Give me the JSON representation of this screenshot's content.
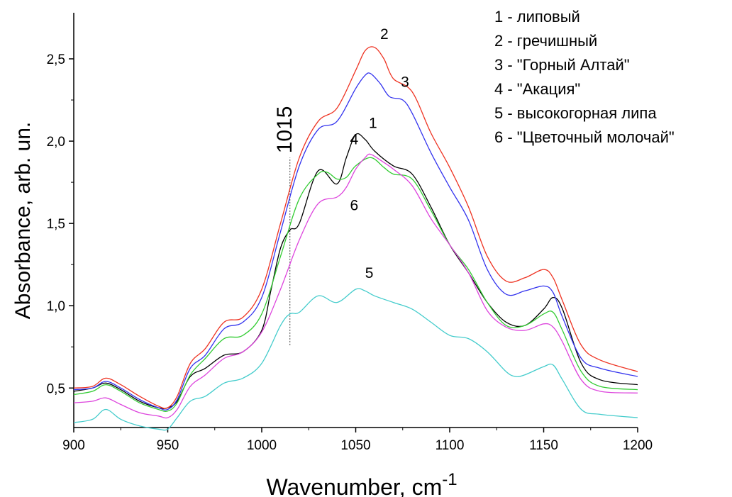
{
  "chart_data": {
    "type": "line",
    "xlabel": "Wavenumber, cm",
    "xlabel_superscript": "-1",
    "ylabel": "Absorbance, arb. un.",
    "xlim": [
      900,
      1200
    ],
    "ylim": [
      0.26,
      2.78
    ],
    "x_ticks": [
      900,
      950,
      1000,
      1050,
      1100,
      1150,
      1200
    ],
    "y_ticks": [
      0.5,
      1.0,
      1.5,
      2.0,
      2.5
    ],
    "y_tick_labels": [
      "0,5",
      "1,0",
      "1,5",
      "2,0",
      "2,5"
    ],
    "grid": false,
    "legend_position": "top-right",
    "annotation": {
      "text": "1015",
      "x": 1015,
      "y_from": 0.76,
      "y_to": 1.9
    },
    "series": [
      {
        "name": "1 - липовый",
        "label": "1",
        "color": "#000000",
        "x": [
          900,
          910,
          917,
          925,
          935,
          945,
          950,
          955,
          962,
          970,
          980,
          990,
          1000,
          1005,
          1010,
          1015,
          1020,
          1030,
          1040,
          1045,
          1050,
          1055,
          1060,
          1070,
          1080,
          1090,
          1100,
          1110,
          1120,
          1130,
          1140,
          1150,
          1155,
          1160,
          1170,
          1180,
          1200
        ],
        "y": [
          0.48,
          0.5,
          0.53,
          0.49,
          0.42,
          0.38,
          0.38,
          0.42,
          0.57,
          0.62,
          0.7,
          0.72,
          0.85,
          1.1,
          1.35,
          1.46,
          1.5,
          1.82,
          1.74,
          1.9,
          2.04,
          2.01,
          1.94,
          1.85,
          1.8,
          1.6,
          1.37,
          1.2,
          1.02,
          0.9,
          0.88,
          0.98,
          1.05,
          0.98,
          0.65,
          0.55,
          0.52
        ],
        "label_at": [
          1057,
          2.08
        ]
      },
      {
        "name": "2 - гречишный",
        "label": "2",
        "color": "#ee3322",
        "x": [
          900,
          910,
          917,
          925,
          935,
          945,
          950,
          955,
          962,
          970,
          980,
          990,
          1000,
          1010,
          1020,
          1030,
          1040,
          1050,
          1055,
          1060,
          1065,
          1070,
          1080,
          1090,
          1100,
          1110,
          1120,
          1130,
          1140,
          1150,
          1155,
          1160,
          1170,
          1180,
          1200
        ],
        "y": [
          0.5,
          0.51,
          0.56,
          0.52,
          0.45,
          0.39,
          0.38,
          0.45,
          0.65,
          0.74,
          0.9,
          0.93,
          1.1,
          1.5,
          1.9,
          2.12,
          2.2,
          2.43,
          2.55,
          2.57,
          2.5,
          2.38,
          2.3,
          2.05,
          1.84,
          1.6,
          1.3,
          1.15,
          1.17,
          1.22,
          1.17,
          1.03,
          0.76,
          0.67,
          0.6
        ],
        "label_at": [
          1063,
          2.62
        ]
      },
      {
        "name": "3 - \"Горный Алтай\"",
        "label": "3",
        "color": "#3333ee",
        "x": [
          900,
          910,
          917,
          925,
          935,
          945,
          950,
          955,
          962,
          970,
          980,
          990,
          1000,
          1010,
          1020,
          1030,
          1040,
          1050,
          1055,
          1058,
          1063,
          1068,
          1075,
          1080,
          1090,
          1100,
          1110,
          1120,
          1130,
          1140,
          1150,
          1155,
          1160,
          1170,
          1180,
          1200
        ],
        "y": [
          0.49,
          0.5,
          0.54,
          0.5,
          0.43,
          0.38,
          0.37,
          0.43,
          0.62,
          0.7,
          0.86,
          0.9,
          1.05,
          1.45,
          1.85,
          2.07,
          2.12,
          2.32,
          2.4,
          2.41,
          2.35,
          2.27,
          2.25,
          2.17,
          1.93,
          1.72,
          1.52,
          1.22,
          1.07,
          1.09,
          1.12,
          1.08,
          0.93,
          0.68,
          0.62,
          0.57
        ],
        "label_at": [
          1074,
          2.33
        ]
      },
      {
        "name": "4 - \"Акация\"",
        "label": "4",
        "color": "#33cc33",
        "x": [
          900,
          910,
          917,
          925,
          935,
          945,
          950,
          955,
          962,
          970,
          980,
          990,
          1000,
          1010,
          1020,
          1030,
          1035,
          1040,
          1045,
          1050,
          1058,
          1065,
          1070,
          1080,
          1090,
          1100,
          1110,
          1120,
          1130,
          1140,
          1150,
          1155,
          1160,
          1170,
          1180,
          1200
        ],
        "y": [
          0.46,
          0.48,
          0.52,
          0.48,
          0.41,
          0.37,
          0.36,
          0.41,
          0.58,
          0.68,
          0.8,
          0.82,
          0.95,
          1.3,
          1.65,
          1.8,
          1.81,
          1.77,
          1.78,
          1.85,
          1.9,
          1.84,
          1.8,
          1.77,
          1.58,
          1.37,
          1.22,
          1.02,
          0.88,
          0.88,
          0.95,
          0.96,
          0.85,
          0.6,
          0.51,
          0.49
        ],
        "label_at": [
          1047,
          1.98
        ]
      },
      {
        "name": "5 - высокогорная липа",
        "label": "5",
        "color": "#44cccc",
        "x": [
          900,
          910,
          917,
          925,
          935,
          945,
          950,
          955,
          962,
          970,
          980,
          990,
          1000,
          1010,
          1015,
          1020,
          1030,
          1040,
          1050,
          1055,
          1060,
          1070,
          1080,
          1090,
          1100,
          1110,
          1120,
          1130,
          1135,
          1140,
          1150,
          1155,
          1160,
          1170,
          1180,
          1200
        ],
        "y": [
          0.29,
          0.31,
          0.37,
          0.31,
          0.27,
          0.25,
          0.25,
          0.32,
          0.42,
          0.45,
          0.53,
          0.56,
          0.65,
          0.88,
          0.95,
          0.96,
          1.06,
          1.02,
          1.1,
          1.09,
          1.06,
          1.02,
          0.98,
          0.9,
          0.82,
          0.8,
          0.72,
          0.6,
          0.57,
          0.58,
          0.63,
          0.64,
          0.55,
          0.37,
          0.34,
          0.32
        ],
        "label_at": [
          1055,
          1.17
        ]
      },
      {
        "name": "6 - \"Цветочный молочай\"",
        "label": "6",
        "color": "#dd44dd",
        "x": [
          900,
          910,
          917,
          925,
          935,
          945,
          950,
          955,
          962,
          970,
          980,
          990,
          1000,
          1010,
          1020,
          1030,
          1040,
          1045,
          1050,
          1055,
          1058,
          1065,
          1070,
          1080,
          1090,
          1100,
          1110,
          1120,
          1130,
          1140,
          1150,
          1155,
          1160,
          1170,
          1180,
          1200
        ],
        "y": [
          0.41,
          0.42,
          0.44,
          0.4,
          0.35,
          0.33,
          0.32,
          0.37,
          0.51,
          0.58,
          0.68,
          0.72,
          0.84,
          1.1,
          1.4,
          1.62,
          1.66,
          1.72,
          1.83,
          1.9,
          1.92,
          1.87,
          1.83,
          1.73,
          1.53,
          1.37,
          1.2,
          0.97,
          0.87,
          0.85,
          0.89,
          0.87,
          0.78,
          0.55,
          0.48,
          0.47
        ],
        "label_at": [
          1047,
          1.58
        ]
      }
    ]
  }
}
